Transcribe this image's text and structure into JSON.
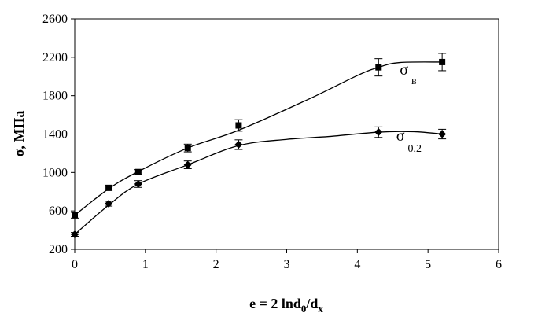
{
  "chart_data": {
    "type": "line",
    "title": "",
    "xlabel": "e = 2 lnd0/dx",
    "xlabel_parts": {
      "main": "e = 2 lnd",
      "sub1": "0",
      "mid": "/d",
      "sub2": "x"
    },
    "ylabel": "σ, МПа",
    "xlim": [
      0,
      6
    ],
    "ylim": [
      200,
      2600
    ],
    "xticks": [
      0,
      1,
      2,
      3,
      4,
      5,
      6
    ],
    "yticks": [
      200,
      600,
      1000,
      1400,
      1800,
      2200,
      2600
    ],
    "grid": false,
    "series": [
      {
        "name": "σв",
        "label_main": "σ",
        "label_sub": "в",
        "marker": "square",
        "x": [
          0,
          0.48,
          0.9,
          1.6,
          2.32,
          4.3,
          5.2
        ],
        "y": [
          555,
          840,
          1005,
          1255,
          1490,
          2095,
          2150
        ],
        "err": [
          30,
          25,
          25,
          40,
          60,
          90,
          90
        ],
        "curve_x": [
          0,
          0.48,
          0.9,
          1.6,
          2.32,
          3.3,
          4.0,
          4.3,
          4.6,
          5.2
        ],
        "curve_y": [
          555,
          830,
          1010,
          1255,
          1440,
          1760,
          2010,
          2095,
          2145,
          2150
        ]
      },
      {
        "name": "σ0,2",
        "label_main": "σ",
        "label_sub": "0,2",
        "marker": "diamond",
        "x": [
          0,
          0.48,
          0.9,
          1.6,
          2.32,
          4.3,
          5.2
        ],
        "y": [
          355,
          675,
          880,
          1080,
          1290,
          1420,
          1400
        ],
        "err": [
          20,
          25,
          35,
          40,
          50,
          55,
          50
        ],
        "curve_x": [
          0,
          0.48,
          0.9,
          1.6,
          2.32,
          3.0,
          3.6,
          4.3,
          4.8,
          5.2
        ],
        "curve_y": [
          355,
          660,
          880,
          1080,
          1280,
          1345,
          1375,
          1420,
          1425,
          1400
        ]
      }
    ]
  }
}
